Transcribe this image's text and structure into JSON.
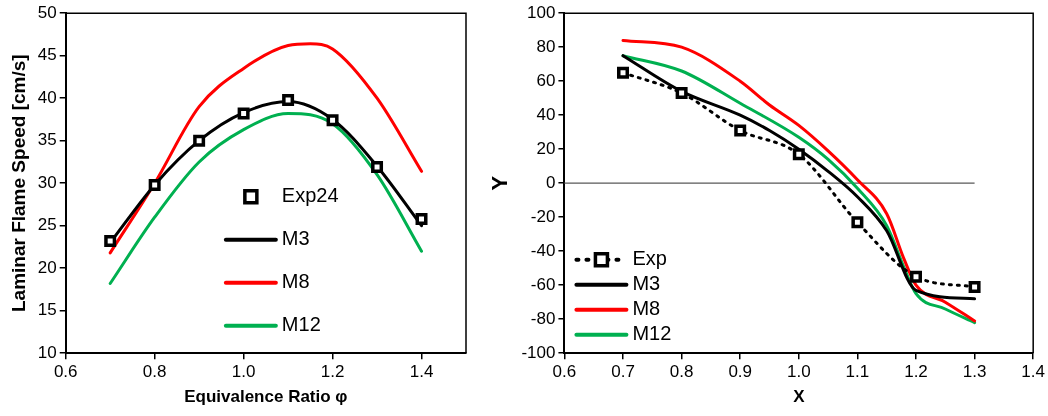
{
  "chart_data": [
    {
      "type": "line",
      "xlabel": "Equivalence Ratio φ",
      "ylabel": "Laminar Flame Speed [cm/s]",
      "xlim": [
        0.6,
        1.5
      ],
      "xticks": [
        0.6,
        0.8,
        {
          "value": 1,
          "label": "1.0"
        },
        1.2,
        1.4
      ],
      "ylim": [
        10,
        50
      ],
      "yticks": [
        10,
        15,
        20,
        25,
        30,
        35,
        40,
        45,
        50
      ],
      "grid": false,
      "legend": "bottom",
      "series": [
        {
          "name": "Exp24",
          "type": "scatter",
          "marker": "square",
          "color": "#000000",
          "x": [
            0.7,
            0.8,
            0.9,
            1.0,
            1.1,
            1.2,
            1.3,
            1.4
          ],
          "values": [
            23.2,
            29.8,
            35,
            38.2,
            39.8,
            37.4,
            31.9,
            25.8
          ]
        },
        {
          "name": "M3",
          "type": "line",
          "marker": "none",
          "color": "#000000",
          "x": [
            0.7,
            0.8,
            0.9,
            1.0,
            1.1,
            1.2,
            1.3,
            1.4
          ],
          "values": [
            23,
            29.8,
            35,
            38.3,
            39.6,
            37.5,
            32,
            25
          ]
        },
        {
          "name": "M8",
          "type": "line",
          "marker": "none",
          "color": "#ff0000",
          "x": [
            0.7,
            0.8,
            0.9,
            1.0,
            1.1,
            1.15,
            1.2,
            1.3,
            1.4
          ],
          "values": [
            21.8,
            30,
            39,
            43.5,
            46.2,
            46.4,
            45.8,
            40,
            31.4
          ]
        },
        {
          "name": "M12",
          "type": "line",
          "marker": "none",
          "color": "#00b050",
          "x": [
            0.7,
            0.8,
            0.9,
            1.0,
            1.1,
            1.2,
            1.3,
            1.4
          ],
          "values": [
            18.2,
            26,
            32.5,
            36.3,
            38.2,
            37,
            31,
            22
          ]
        }
      ]
    },
    {
      "type": "line",
      "xlabel": "X",
      "ylabel": "Y",
      "xlim": [
        0.6,
        1.4
      ],
      "xticks": [
        0.6,
        0.7,
        0.8,
        0.9,
        {
          "value": 1,
          "label": "1.0"
        },
        1.1,
        1.2,
        1.3,
        1.4
      ],
      "ylim": [
        -100,
        100
      ],
      "yticks": [
        -100,
        -80,
        -60,
        -40,
        -20,
        0,
        20,
        40,
        60,
        80,
        100
      ],
      "grid": false,
      "legend": "bottom left",
      "ref_lines": [
        {
          "axis": "y",
          "value": 0,
          "color": "#595959"
        }
      ],
      "series": [
        {
          "name": "Exp",
          "type": "line",
          "marker": "square",
          "line_style": "dotted",
          "color": "#000000",
          "x": [
            0.7,
            0.8,
            0.9,
            1.0,
            1.1,
            1.2,
            1.3
          ],
          "values": [
            65,
            53,
            31,
            17,
            -23,
            -55,
            -61
          ]
        },
        {
          "name": "M3",
          "type": "line",
          "marker": "none",
          "color": "#000000",
          "x": [
            0.7,
            0.8,
            0.9,
            0.95,
            1.0,
            1.05,
            1.1,
            1.15,
            1.2,
            1.3
          ],
          "values": [
            75,
            54,
            40,
            31,
            20,
            7,
            -8,
            -28,
            -63,
            -68
          ]
        },
        {
          "name": "M8",
          "type": "line",
          "marker": "none",
          "color": "#ff0000",
          "x": [
            0.7,
            0.8,
            0.9,
            0.95,
            1.0,
            1.05,
            1.1,
            1.15,
            1.18,
            1.2,
            1.25,
            1.3
          ],
          "values": [
            84,
            80,
            60,
            46,
            34,
            19,
            2,
            -18,
            -45,
            -60,
            -70,
            -81
          ]
        },
        {
          "name": "M12",
          "type": "line",
          "marker": "none",
          "color": "#00b050",
          "x": [
            0.7,
            0.8,
            0.9,
            1.0,
            1.05,
            1.1,
            1.15,
            1.18,
            1.2,
            1.25,
            1.3
          ],
          "values": [
            75,
            66,
            47,
            27,
            14,
            -3,
            -25,
            -50,
            -65,
            -74,
            -82
          ]
        }
      ]
    }
  ]
}
